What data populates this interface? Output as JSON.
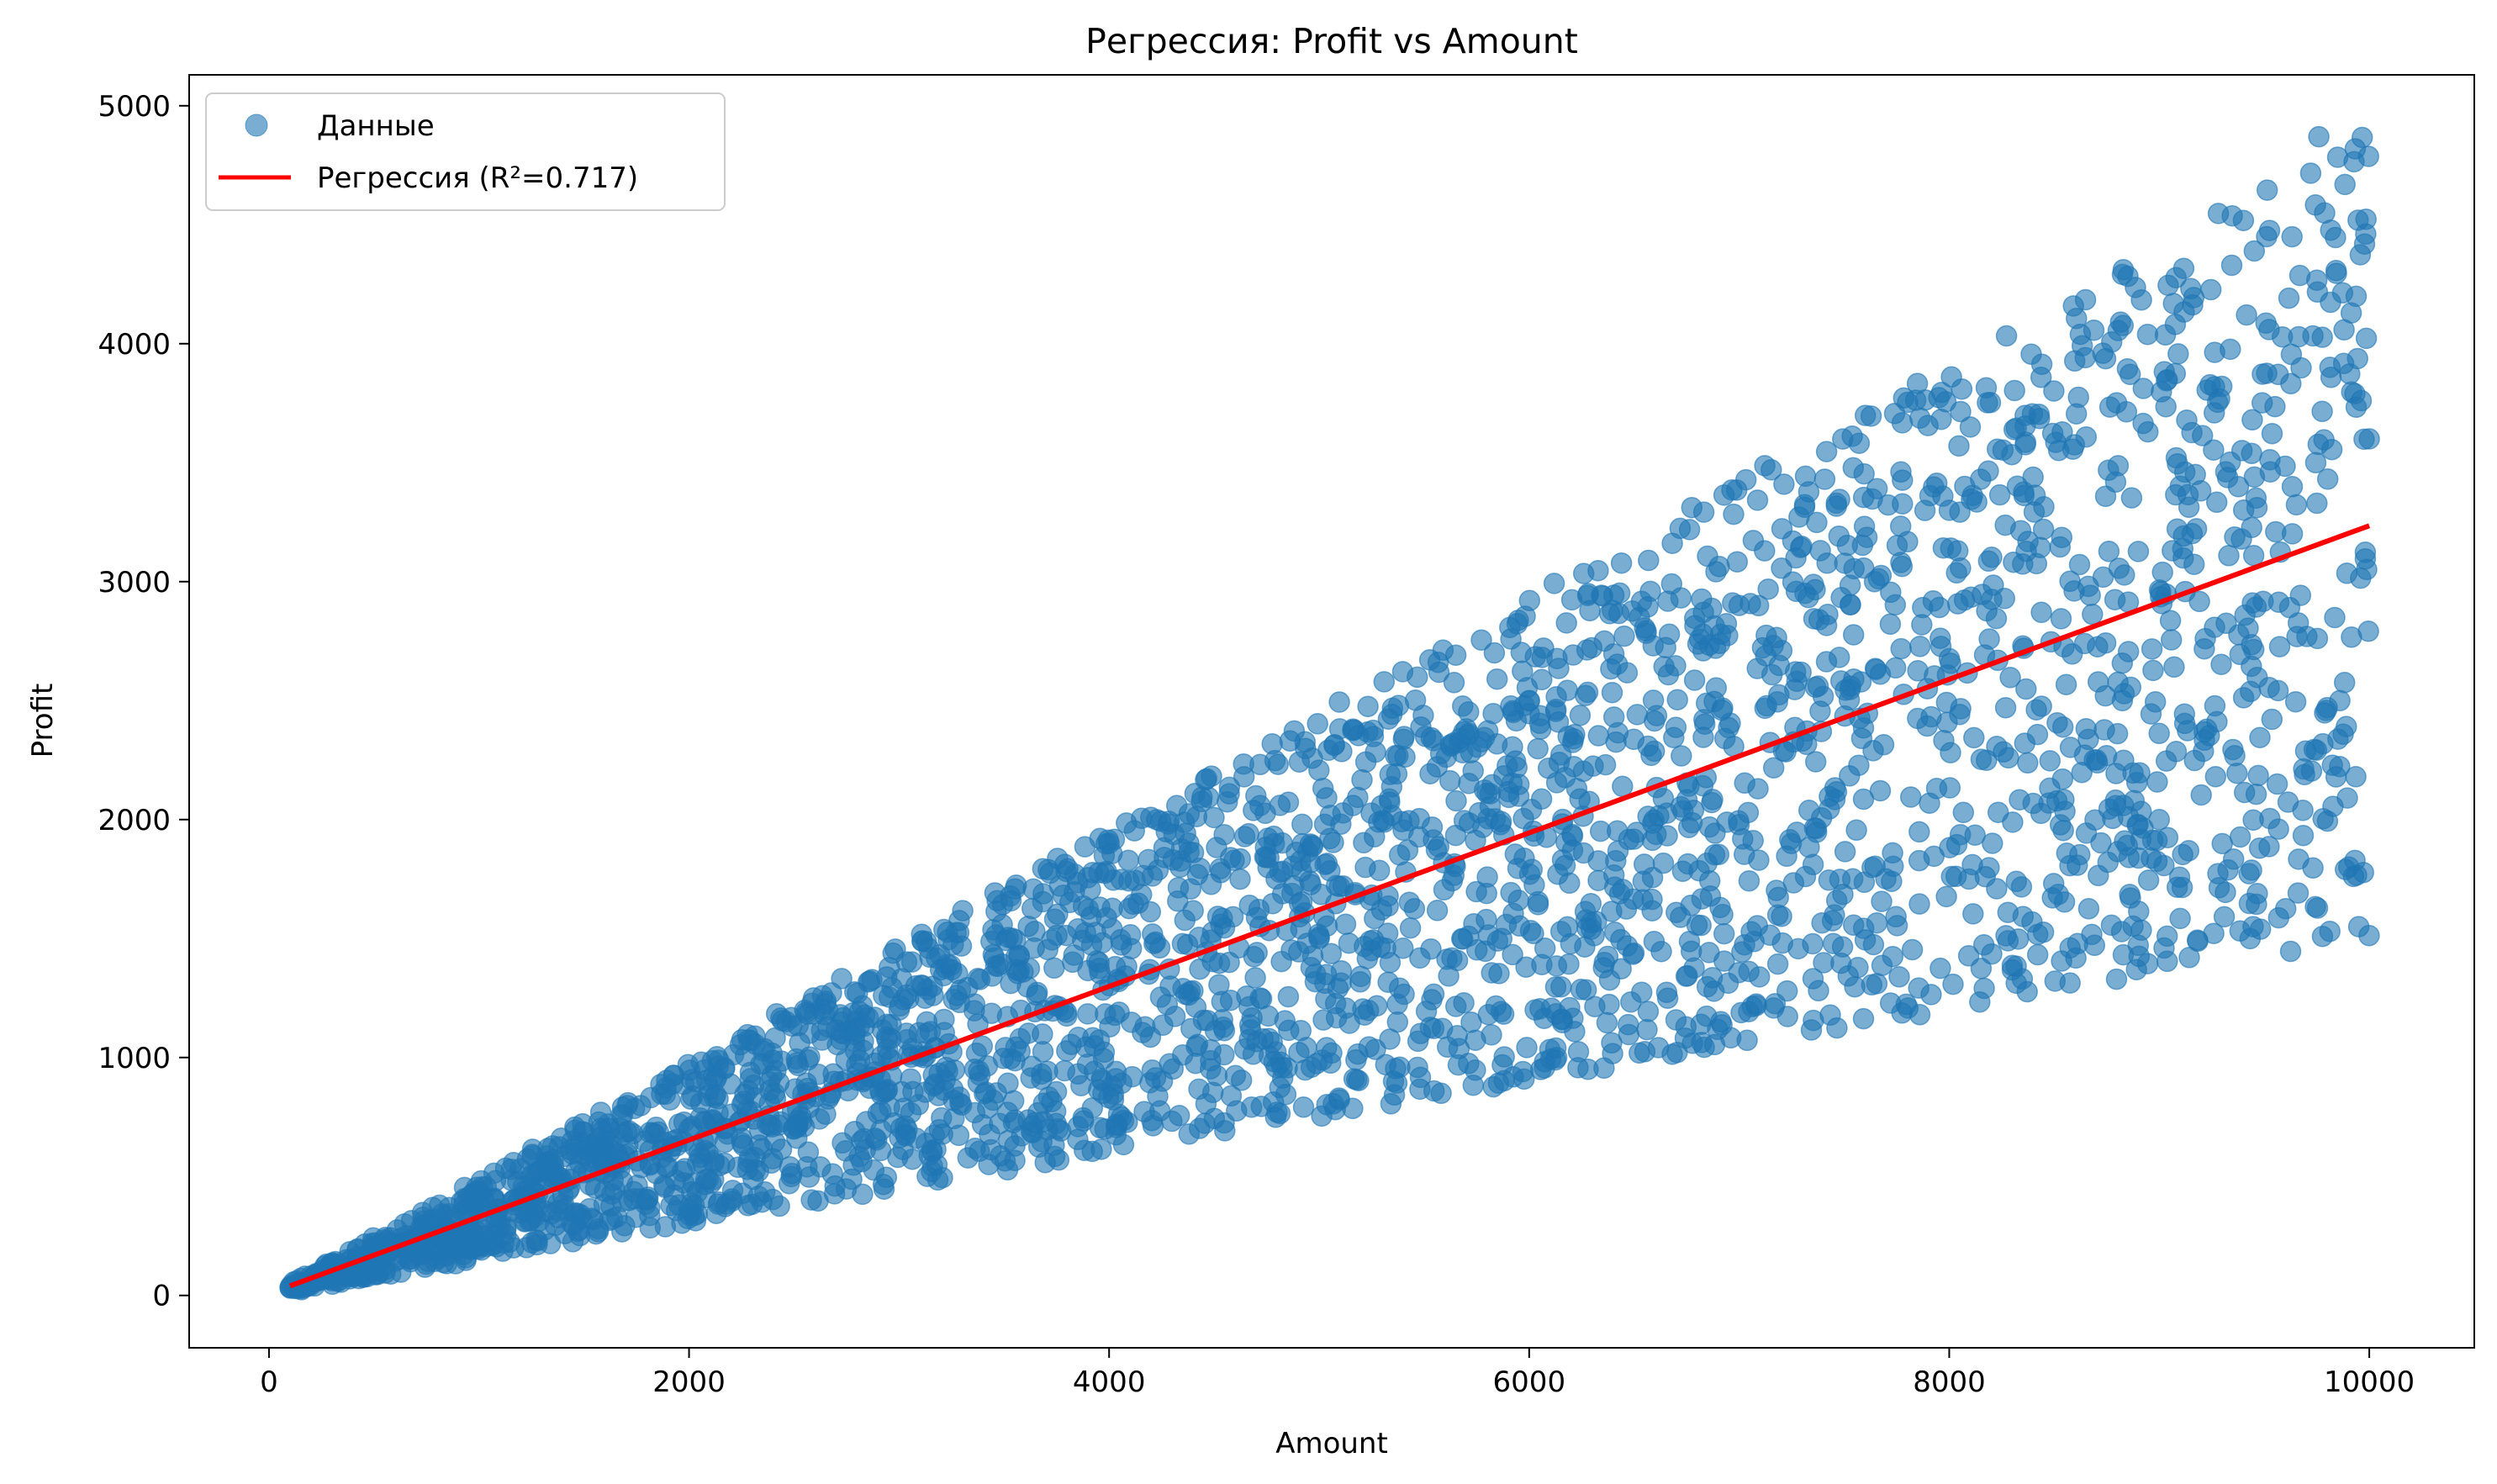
{
  "chart_data": {
    "type": "scatter",
    "title": "Регрессия: Profit vs Amount",
    "xlabel": "Amount",
    "ylabel": "Profit",
    "xlim": [
      -380,
      10500
    ],
    "ylim": [
      -220,
      5130
    ],
    "xticks": [
      0,
      2000,
      4000,
      6000,
      8000,
      10000
    ],
    "yticks": [
      0,
      1000,
      2000,
      3000,
      4000,
      5000
    ],
    "grid": false,
    "legend_position": "top-left",
    "series": [
      {
        "name": "Данные",
        "kind": "scatter",
        "color": "#1f77b4",
        "alpha": 0.6,
        "description": "approx. 3000 points; Profit ranges from about 0.15·Amount to 0.49·Amount, Amount from 100 to 10000",
        "sample_points": [
          [
            120,
            30
          ],
          [
            500,
            150
          ],
          [
            1000,
            350
          ],
          [
            2000,
            700
          ],
          [
            3000,
            1200
          ],
          [
            4000,
            1900
          ],
          [
            5000,
            1500
          ],
          [
            6000,
            2500
          ],
          [
            7000,
            2900
          ],
          [
            8000,
            3300
          ],
          [
            9000,
            2000
          ],
          [
            9760,
            4870
          ],
          [
            9950,
            1550
          ],
          [
            10000,
            3600
          ]
        ]
      },
      {
        "name": "Регрессия (R²=0.717)",
        "kind": "line",
        "color": "#ff0000",
        "x": [
          100,
          10000
        ],
        "y": [
          40,
          3235
        ]
      }
    ],
    "r_squared": 0.717,
    "generator": {
      "n_points": 3000,
      "x_min": 100,
      "x_max": 10000,
      "ratio_min": 0.15,
      "ratio_max": 0.49
    }
  }
}
